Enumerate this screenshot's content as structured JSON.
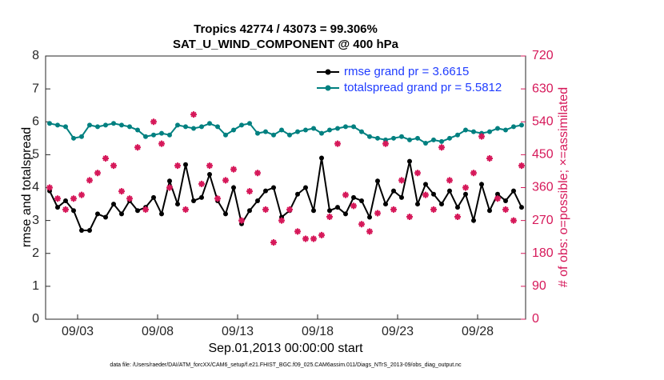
{
  "chart_data": {
    "type": "line",
    "title": "Tropics 42774 / 43073 = 99.306%",
    "subtitle": "SAT_U_WIND_COMPONENT @ 400 hPa",
    "xlabel": "Sep.01,2013 00:00:00 start",
    "ylabel": "rmse and totalspread",
    "y2label": "# of obs: o=possible; ×=assimilated",
    "footnote": "data file: /Users/raeder/DAI/ATM_forcXX/CAM6_setup/f.e21.FHIST_BGC.f09_025.CAM6assim.011/Diags_NTrS_2013-09/obs_diag_output.nc",
    "legend": "upper right",
    "xlim": [
      0,
      30
    ],
    "xticks": [
      {
        "value": 2,
        "label": "09/03"
      },
      {
        "value": 7,
        "label": "09/08"
      },
      {
        "value": 12,
        "label": "09/13"
      },
      {
        "value": 17,
        "label": "09/18"
      },
      {
        "value": 22,
        "label": "09/23"
      },
      {
        "value": 27,
        "label": "09/28"
      }
    ],
    "ylim": [
      0,
      8
    ],
    "yticks": [
      0,
      1,
      2,
      3,
      4,
      5,
      6,
      7,
      8
    ],
    "y2lim": [
      0,
      720
    ],
    "y2ticks": [
      0,
      90,
      180,
      270,
      360,
      450,
      540,
      630,
      720
    ],
    "x": [
      0.25,
      0.75,
      1.25,
      1.75,
      2.25,
      2.75,
      3.25,
      3.75,
      4.25,
      4.75,
      5.25,
      5.75,
      6.25,
      6.75,
      7.25,
      7.75,
      8.25,
      8.75,
      9.25,
      9.75,
      10.25,
      10.75,
      11.25,
      11.75,
      12.25,
      12.75,
      13.25,
      13.75,
      14.25,
      14.75,
      15.25,
      15.75,
      16.25,
      16.75,
      17.25,
      17.75,
      18.25,
      18.75,
      19.25,
      19.75,
      20.25,
      20.75,
      21.25,
      21.75,
      22.25,
      22.75,
      23.25,
      23.75,
      24.25,
      24.75,
      25.25,
      25.75,
      26.25,
      26.75,
      27.25,
      27.75,
      28.25,
      28.75,
      29.25,
      29.75
    ],
    "series": [
      {
        "name": "rmse grand pr = 3.6615",
        "color": "#000000",
        "values": [
          3.9,
          3.4,
          3.6,
          3.3,
          2.7,
          2.7,
          3.2,
          3.1,
          3.5,
          3.2,
          3.6,
          3.3,
          3.4,
          3.7,
          3.2,
          4.2,
          3.5,
          4.7,
          3.6,
          3.7,
          4.4,
          3.6,
          3.2,
          4.0,
          2.9,
          3.3,
          3.6,
          3.9,
          4.0,
          3.1,
          3.3,
          3.8,
          4.0,
          3.3,
          4.9,
          3.3,
          3.4,
          3.2,
          3.7,
          3.6,
          3.1,
          4.2,
          3.5,
          3.9,
          3.7,
          4.8,
          3.5,
          4.1,
          3.8,
          3.5,
          3.9,
          3.4,
          3.8,
          3.0,
          4.1,
          3.3,
          3.8,
          3.6,
          3.9,
          3.4
        ]
      },
      {
        "name": "totalspread grand pr = 5.5812",
        "color": "#008080",
        "values": [
          5.95,
          5.9,
          5.85,
          5.5,
          5.55,
          5.9,
          5.85,
          5.9,
          5.95,
          5.9,
          5.85,
          5.75,
          5.55,
          5.6,
          5.65,
          5.6,
          5.9,
          5.85,
          5.8,
          5.85,
          5.95,
          5.85,
          5.6,
          5.75,
          5.9,
          5.95,
          5.65,
          5.7,
          5.6,
          5.75,
          5.6,
          5.7,
          5.75,
          5.8,
          5.65,
          5.75,
          5.8,
          5.85,
          5.85,
          5.7,
          5.55,
          5.5,
          5.45,
          5.5,
          5.55,
          5.45,
          5.5,
          5.35,
          5.45,
          5.4,
          5.5,
          5.6,
          5.75,
          5.7,
          5.65,
          5.7,
          5.8,
          5.75,
          5.85,
          5.9
        ]
      },
      {
        "axis": "y2",
        "color": "#d6195a",
        "values": [
          360,
          330,
          300,
          330,
          340,
          380,
          400,
          440,
          420,
          350,
          330,
          470,
          300,
          540,
          480,
          360,
          420,
          300,
          560,
          370,
          420,
          330,
          380,
          410,
          270,
          350,
          400,
          300,
          210,
          270,
          300,
          240,
          220,
          220,
          230,
          280,
          480,
          340,
          310,
          260,
          240,
          290,
          480,
          300,
          380,
          280,
          400,
          340,
          300,
          470,
          380,
          280,
          360,
          400,
          500,
          440,
          330,
          300,
          270,
          420
        ]
      }
    ]
  }
}
